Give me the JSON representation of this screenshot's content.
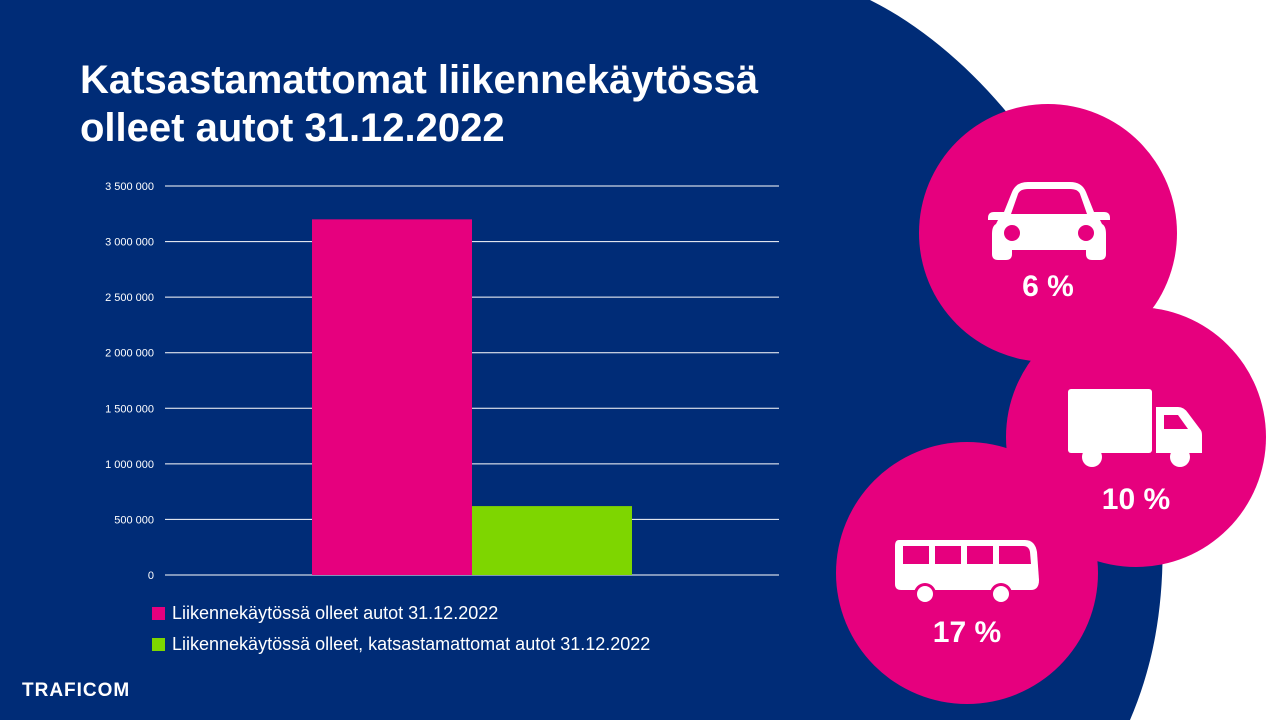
{
  "slide": {
    "title_line1": "Katsastamattomat liikennekäytössä",
    "title_line2": "olleet autot 31.12.2022",
    "logo_text": "TRAFICOM"
  },
  "colors": {
    "background": "#002c77",
    "accent_pink": "#e6007e",
    "accent_green": "#7ed600"
  },
  "badges": [
    {
      "icon": "car-icon",
      "label": "6 %"
    },
    {
      "icon": "truck-icon",
      "label": "10 %"
    },
    {
      "icon": "bus-icon",
      "label": "17 %"
    }
  ],
  "chart_data": {
    "type": "bar",
    "categories": [
      ""
    ],
    "series": [
      {
        "name": "Liikennekäytössä olleet autot 31.12.2022",
        "values": [
          3200000
        ],
        "color": "#e6007e"
      },
      {
        "name": "Liikennekäytössä olleet, katsastamattomat autot 31.12.2022",
        "values": [
          620000
        ],
        "color": "#7ed600"
      }
    ],
    "ylim": [
      0,
      3500000
    ],
    "yticks": [
      0,
      500000,
      1000000,
      1500000,
      2000000,
      2500000,
      3000000,
      3500000
    ],
    "ytick_labels": [
      "0",
      "500 000",
      "1 000 000",
      "1 500 000",
      "2 000 000",
      "2 500 000",
      "3 000 000",
      "3 500 000"
    ],
    "grid": true,
    "legend": "bottom"
  }
}
